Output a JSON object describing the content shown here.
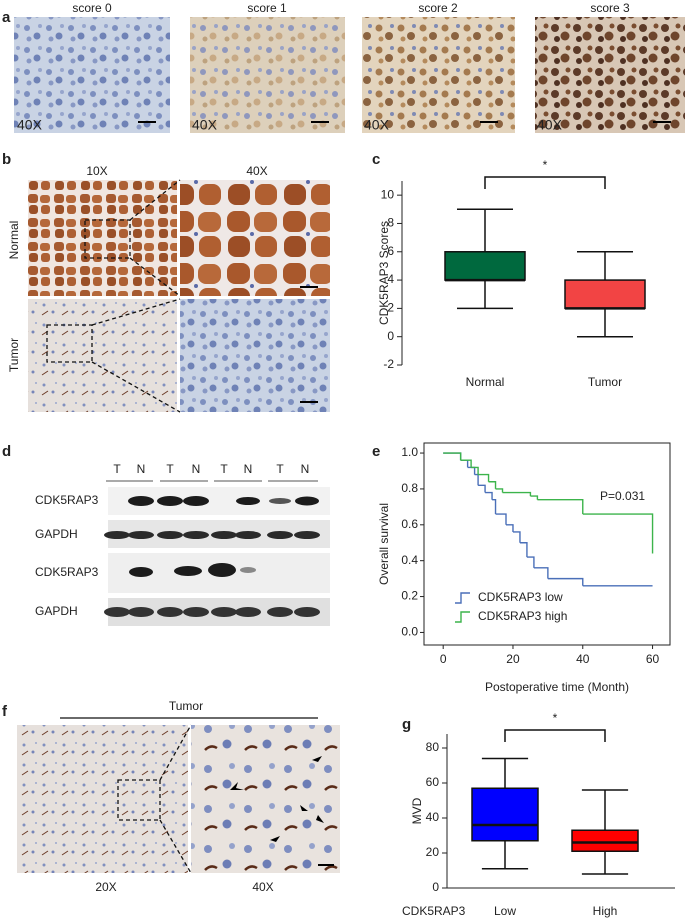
{
  "panel_labels": [
    "a",
    "b",
    "c",
    "d",
    "e",
    "f",
    "g"
  ],
  "score_panel": {
    "titles": [
      "score 0",
      "score 1",
      "score 2",
      "score 3"
    ],
    "magnification": [
      "40X",
      "40X",
      "40X",
      "40X"
    ]
  },
  "normal_tumor_panel": {
    "columns": [
      "10X",
      "40X"
    ],
    "rows": [
      "Normal",
      "Tumor"
    ]
  },
  "western_blot": {
    "lanes": [
      "T",
      "N",
      "T",
      "N",
      "T",
      "N",
      "T",
      "N"
    ],
    "bands": [
      "CDK5RAP3",
      "GAPDH",
      "CDK5RAP3",
      "GAPDH"
    ]
  },
  "mvd_panel": {
    "title": "Tumor",
    "magnification": [
      "20X",
      "40X"
    ]
  },
  "chart_data": [
    {
      "type": "box",
      "ylabel": "CDK5RAP3 Scores",
      "annotation": "*",
      "boxes": [
        {
          "name": "Normal",
          "color": "#00693e",
          "min": 2,
          "q1": 4,
          "median": 4,
          "q3": 6,
          "max": 9
        },
        {
          "name": "Tumor",
          "color": "#f24444",
          "min": 0,
          "q1": 2,
          "median": 2,
          "q3": 4,
          "max": 6
        }
      ],
      "ylim": [
        -2,
        11
      ],
      "yticks": [
        -2,
        0,
        2,
        4,
        6,
        8,
        10
      ]
    },
    {
      "type": "step",
      "xlabel": "Postoperative time (Month)",
      "ylabel": "Overall survival",
      "annotation": "P=0.031",
      "series": [
        {
          "name": "CDK5RAP3 low",
          "color": "#4a6fb8",
          "x": [
            0,
            5,
            7,
            9,
            10,
            12,
            14,
            15,
            18,
            20,
            22,
            24,
            26,
            30,
            40,
            60
          ],
          "values": [
            1.0,
            0.96,
            0.92,
            0.88,
            0.82,
            0.78,
            0.74,
            0.66,
            0.6,
            0.56,
            0.5,
            0.42,
            0.36,
            0.3,
            0.26,
            0.26
          ]
        },
        {
          "name": "CDK5RAP3 high",
          "color": "#3cb44b",
          "x": [
            0,
            5,
            8,
            10,
            13,
            15,
            17,
            25,
            27,
            40,
            60
          ],
          "values": [
            1.0,
            0.96,
            0.92,
            0.88,
            0.84,
            0.8,
            0.78,
            0.76,
            0.74,
            0.66,
            0.44
          ]
        }
      ],
      "xlim": [
        -5.5,
        65
      ],
      "xticks": [
        0,
        20,
        40,
        60
      ],
      "ylim": [
        -0.07,
        1.056
      ],
      "yticks": [
        {
          "value": 0,
          "label": "0.0"
        },
        0.2,
        0.4,
        0.6,
        0.8,
        {
          "value": 1,
          "label": "1.0"
        }
      ]
    },
    {
      "type": "box",
      "ylabel": "MVD",
      "xlabel": "CDK5RAP3",
      "annotation": "*",
      "boxes": [
        {
          "name": "Low",
          "color": "#0000ff",
          "min": 11,
          "q1": 27,
          "median": 36,
          "q3": 57,
          "max": 74
        },
        {
          "name": "High",
          "color": "#ff0000",
          "min": 8,
          "q1": 21,
          "median": 26,
          "q3": 33,
          "max": 56
        }
      ],
      "ylim": [
        0,
        88
      ],
      "yticks": [
        0,
        20,
        40,
        60,
        80
      ]
    }
  ]
}
